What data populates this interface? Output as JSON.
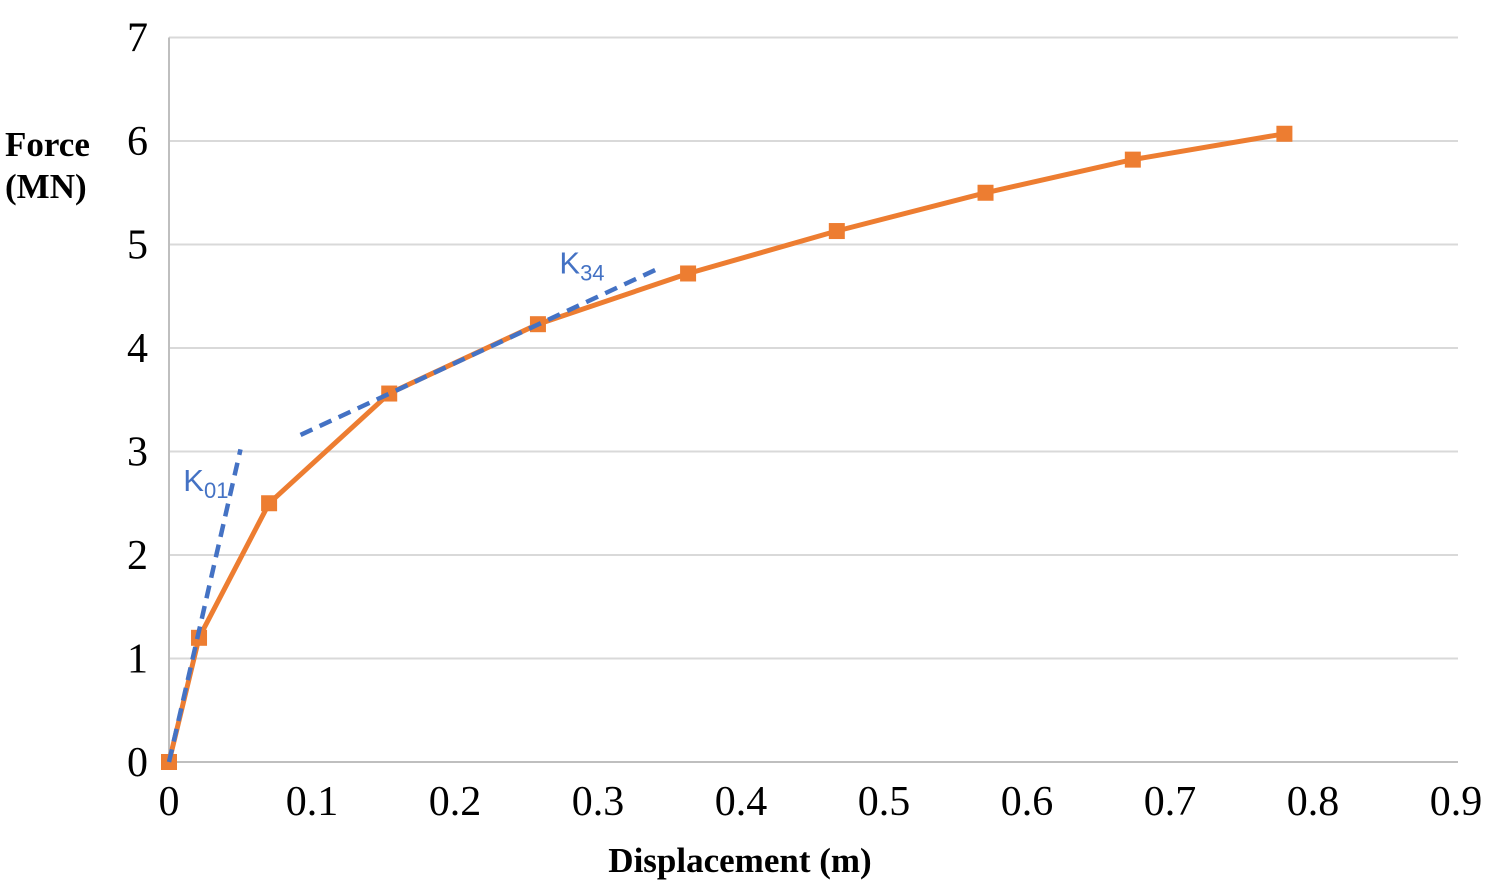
{
  "chart_data": {
    "type": "line",
    "title": "",
    "xlabel": "Displacement (m)",
    "ylabel": "Force (MN)",
    "ylabel_lines": [
      "Force",
      "(MN)"
    ],
    "xlim": [
      0,
      0.9
    ],
    "ylim": [
      0,
      7
    ],
    "x_tick_labels": [
      "0",
      "0.1",
      "0.2",
      "0.3",
      "0.4",
      "0.5",
      "0.6",
      "0.7",
      "0.8",
      "0.9"
    ],
    "x_tick_values": [
      0,
      0.1,
      0.2,
      0.3,
      0.4,
      0.5,
      0.6,
      0.7,
      0.8,
      0.9
    ],
    "y_tick_labels": [
      "0",
      "1",
      "2",
      "3",
      "4",
      "5",
      "6",
      "7"
    ],
    "y_tick_values": [
      0,
      1,
      2,
      3,
      4,
      5,
      6,
      7
    ],
    "grid": "horizontal",
    "legend": "none",
    "colors": {
      "series": "#ED7D31",
      "annotation": "#4472C4",
      "gridline": "#D9D9D9",
      "axis_line": "#BFBFBF",
      "text": "#000000"
    },
    "series": [
      {
        "name": "force-displacement-curve",
        "color": "#ED7D31",
        "marker": "square",
        "line_style": "solid",
        "points": [
          [
            0,
            0
          ],
          [
            0.021,
            1.2
          ],
          [
            0.07,
            2.5
          ],
          [
            0.154,
            3.56
          ],
          [
            0.258,
            4.23
          ],
          [
            0.363,
            4.72
          ],
          [
            0.467,
            5.13
          ],
          [
            0.571,
            5.5
          ],
          [
            0.674,
            5.82
          ],
          [
            0.78,
            6.07
          ]
        ]
      }
    ],
    "annotations": [
      {
        "id": "K01",
        "text": "K",
        "subscript": "01",
        "color": "#4472C4",
        "line_style": "dashed",
        "line_from": [
          0,
          0
        ],
        "line_to": [
          0.05,
          3.02
        ],
        "label_at": [
          0.01,
          2.62
        ]
      },
      {
        "id": "K34",
        "text": "K",
        "subscript": "34",
        "color": "#4472C4",
        "line_style": "dashed",
        "line_from": [
          0.092,
          3.16
        ],
        "line_to": [
          0.341,
          4.76
        ],
        "label_at": [
          0.273,
          4.72
        ]
      }
    ]
  }
}
